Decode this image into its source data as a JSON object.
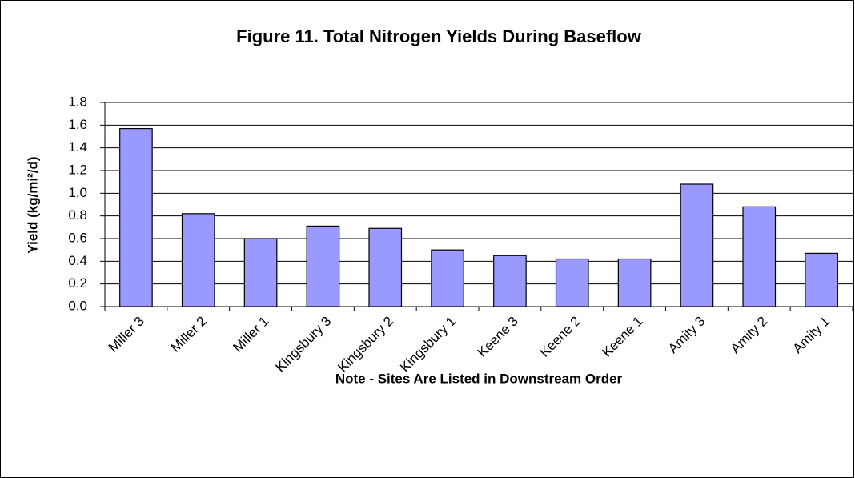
{
  "chart_data": {
    "type": "bar",
    "title": "Figure 11. Total Nitrogen Yields During Baseflow",
    "x_label": "Note - Sites Are Listed in Downstream Order",
    "y_label": "Yield (kg/mi²/d)",
    "categories": [
      "Miller 3",
      "Miller 2",
      "Miller 1",
      "Kingsbury 3",
      "Kingsbury 2",
      "Kingsbury 1",
      "Keene 3",
      "Keene 2",
      "Keene 1",
      "Amity 3",
      "Amity 2",
      "Amity 1"
    ],
    "values": [
      1.57,
      0.82,
      0.6,
      0.71,
      0.69,
      0.5,
      0.45,
      0.42,
      0.42,
      1.08,
      0.88,
      0.47
    ],
    "color": "#9999ff",
    "ylim": [
      0,
      1.8
    ],
    "yticks": [
      {
        "value": 0,
        "label": "0.0"
      },
      0.2,
      0.4,
      0.6,
      0.8,
      {
        "value": 1,
        "label": "1.0"
      },
      1.2,
      1.4,
      1.6,
      1.8
    ],
    "grid": true
  }
}
